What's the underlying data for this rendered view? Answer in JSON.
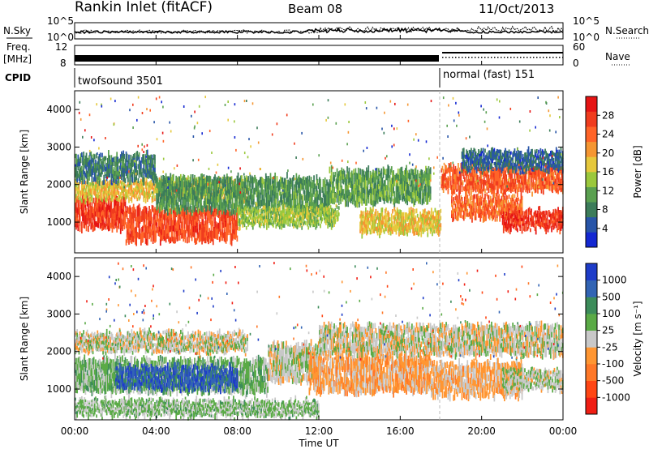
{
  "header": {
    "station": "Rankin Inlet (fitACF)",
    "beam": "Beam 08",
    "date": "11/Oct/2013"
  },
  "noise_panel": {
    "left_label": "N.Sky",
    "right_label": "N.Search",
    "ticks": [
      "10^5",
      "10^0"
    ]
  },
  "freq_panel": {
    "label_top": "Freq.",
    "label_unit": "[MHz]",
    "ticks_left": [
      "12",
      "8"
    ],
    "ticks_right": [
      "60",
      "0"
    ],
    "right_label": "Nave"
  },
  "cpid": {
    "label": "CPID",
    "segments": [
      {
        "name": "twofsound 3501",
        "start_hour": 0,
        "end_hour": 18.0
      },
      {
        "name": "normal (fast) 151",
        "start_hour": 18.0,
        "end_hour": 24
      }
    ]
  },
  "x_axis": {
    "label": "Time UT",
    "ticks": [
      "00:00",
      "04:00",
      "08:00",
      "12:00",
      "16:00",
      "20:00",
      "00:00"
    ]
  },
  "power_panel": {
    "ylabel": "Slant Range [km]",
    "yticks": [
      "4000",
      "3000",
      "2000",
      "1000"
    ],
    "colorbar_label": "Power [dB]",
    "colorbar_ticks": [
      "28",
      "24",
      "20",
      "16",
      "12",
      "8",
      "4"
    ],
    "colors": [
      "#1428d2",
      "#2855a8",
      "#3c7c5a",
      "#5aa050",
      "#9bc83c",
      "#e6c83c",
      "#f59632",
      "#ff6428",
      "#f03c1e",
      "#e61414"
    ]
  },
  "velocity_panel": {
    "ylabel": "Slant Range [km]",
    "yticks": [
      "4000",
      "3000",
      "2000",
      "1000"
    ],
    "colorbar_label": "Velocity [m s⁻¹]",
    "colorbar_ticks": [
      "1000",
      "500",
      "100",
      "25",
      "-25",
      "-100",
      "-500",
      "-1000"
    ],
    "colors": [
      "#1e3cc8",
      "#3264b4",
      "#3c8c5a",
      "#5aaa46",
      "#c8c8c8",
      "#ff9632",
      "#ff7828",
      "#ff4614",
      "#f01e14"
    ]
  },
  "chart_data": [
    {
      "type": "heatmap",
      "title": "Power",
      "xlabel": "Time UT",
      "ylabel": "Slant Range [km]",
      "xlim": [
        0,
        24
      ],
      "ylim": [
        180,
        4500
      ],
      "colorbar": {
        "label": "Power [dB]",
        "range": [
          0,
          32
        ]
      },
      "bands": [
        {
          "t0": 0.0,
          "t1": 2.5,
          "r0": 800,
          "r1": 1700,
          "value": 27
        },
        {
          "t0": 2.5,
          "t1": 8.0,
          "r0": 500,
          "r1": 1400,
          "value": 26
        },
        {
          "t0": 0.0,
          "t1": 8.5,
          "r0": 1600,
          "r1": 2100,
          "value": 18
        },
        {
          "t0": 0.0,
          "t1": 4.0,
          "r0": 2100,
          "r1": 2800,
          "value": 8
        },
        {
          "t0": 4.0,
          "t1": 12.5,
          "r0": 1300,
          "r1": 2200,
          "value": 10
        },
        {
          "t0": 8.0,
          "t1": 13.0,
          "r0": 900,
          "r1": 1400,
          "value": 14
        },
        {
          "t0": 12.5,
          "t1": 17.5,
          "r0": 1500,
          "r1": 2400,
          "value": 11
        },
        {
          "t0": 14.0,
          "t1": 18.0,
          "r0": 700,
          "r1": 1300,
          "value": 18
        },
        {
          "t0": 18.0,
          "t1": 24.0,
          "r0": 1800,
          "r1": 2500,
          "value": 25
        },
        {
          "t0": 18.5,
          "t1": 22.0,
          "r0": 1100,
          "r1": 1700,
          "value": 24
        },
        {
          "t0": 21.0,
          "t1": 24.0,
          "r0": 800,
          "r1": 1300,
          "value": 28
        },
        {
          "t0": 19.0,
          "t1": 24.0,
          "r0": 2400,
          "r1": 2900,
          "value": 6
        }
      ]
    },
    {
      "type": "heatmap",
      "title": "Velocity",
      "xlabel": "Time UT",
      "ylabel": "Slant Range [km]",
      "xlim": [
        0,
        24
      ],
      "ylim": [
        180,
        4500
      ],
      "colorbar": {
        "label": "Velocity [m s⁻¹]",
        "range": [
          -1000,
          1000
        ]
      },
      "bands": [
        {
          "t0": 0.0,
          "t1": 8.5,
          "r0": 2000,
          "r1": 2500,
          "value": 0
        },
        {
          "t0": 0.0,
          "t1": 9.5,
          "r0": 900,
          "r1": 1800,
          "value": 200
        },
        {
          "t0": 2.0,
          "t1": 8.0,
          "r0": 1000,
          "r1": 1600,
          "value": 700
        },
        {
          "t0": 0.0,
          "t1": 12.0,
          "r0": 300,
          "r1": 700,
          "value": 150
        },
        {
          "t0": 9.5,
          "t1": 12.0,
          "r0": 1200,
          "r1": 2200,
          "value": 0
        },
        {
          "t0": 11.5,
          "t1": 17.5,
          "r0": 900,
          "r1": 1900,
          "value": -200
        },
        {
          "t0": 12.0,
          "t1": 24.0,
          "r0": 1900,
          "r1": 2700,
          "value": 0
        },
        {
          "t0": 17.5,
          "t1": 22.0,
          "r0": 800,
          "r1": 1700,
          "value": -150
        },
        {
          "t0": 21.0,
          "t1": 24.0,
          "r0": 1000,
          "r1": 1500,
          "value": 50
        }
      ]
    }
  ]
}
